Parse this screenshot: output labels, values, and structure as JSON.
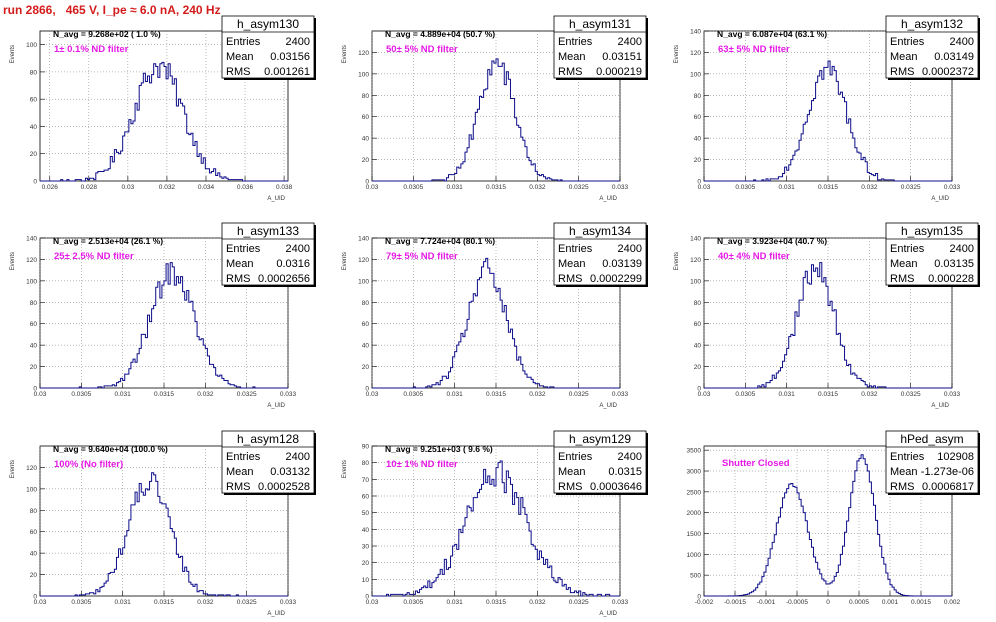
{
  "run_title": "run 2866,   465 V, I_pe ≈ 6.0 nA, 240 Hz",
  "colors": {
    "title": "#d41c1c",
    "histogram": "#0d0d8a",
    "filter_label": "#e619e6",
    "grid": "#777777"
  },
  "chart_data": [
    {
      "type": "histogram",
      "name": "h_asym130",
      "entries": "2400",
      "mean": "0.03156",
      "rms": "0.001261",
      "navg": "N_avg = 9.268e+02 ( 1.0 %)",
      "filter": "1± 0.1% ND filter",
      "ylabel": "Events",
      "xlabel": "A_UID",
      "xlim": [
        0.0255,
        0.0382
      ],
      "ylim": [
        0,
        110
      ],
      "xticks": [
        0.026,
        0.028,
        0.03,
        0.032,
        0.034,
        0.036,
        0.038
      ],
      "xtick_labels": [
        "0.026",
        "0.028",
        "0.03",
        "0.032",
        "0.034",
        "0.036",
        "0.038"
      ],
      "yticks": [
        0,
        20,
        40,
        60,
        80,
        100
      ],
      "peak": 103,
      "mean_value": 0.03156,
      "rms_value": 0.001261,
      "grid": true
    },
    {
      "type": "histogram",
      "name": "h_asym131",
      "entries": "2400",
      "mean": "0.03151",
      "rms": "0.000219",
      "navg": "N_avg = 4.889e+04 (50.7 %)",
      "filter": "50± 5% ND filter",
      "ylabel": "Events",
      "xlabel": "A_UID",
      "xlim": [
        0.03,
        0.033
      ],
      "ylim": [
        0,
        140
      ],
      "xticks": [
        0.03,
        0.0305,
        0.031,
        0.0315,
        0.032,
        0.0325,
        0.033
      ],
      "xtick_labels": [
        "0.03",
        "0.0305",
        "0.031",
        "0.0315",
        "0.032",
        "0.0325",
        "0.033"
      ],
      "yticks": [
        0,
        20,
        40,
        60,
        80,
        100,
        120
      ],
      "peak": 134,
      "mean_value": 0.03151,
      "rms_value": 0.000219,
      "grid": true
    },
    {
      "type": "histogram",
      "name": "h_asym132",
      "entries": "2400",
      "mean": "0.03149",
      "rms": "0.0002372",
      "navg": "N_avg = 6.087e+04 (63.1 %)",
      "filter": "63± 5% ND filter",
      "ylabel": "Events",
      "xlabel": "A_UID",
      "xlim": [
        0.03,
        0.033
      ],
      "ylim": [
        0,
        140
      ],
      "xticks": [
        0.03,
        0.0305,
        0.031,
        0.0315,
        0.032,
        0.0325,
        0.033
      ],
      "xtick_labels": [
        "0.03",
        "0.0305",
        "0.031",
        "0.0315",
        "0.032",
        "0.0325",
        "0.033"
      ],
      "yticks": [
        0,
        20,
        40,
        60,
        80,
        100,
        120,
        140
      ],
      "peak": 128,
      "mean_value": 0.03149,
      "rms_value": 0.0002372,
      "grid": true
    },
    {
      "type": "histogram",
      "name": "h_asym133",
      "entries": "2400",
      "mean": "0.0316",
      "rms": "0.0002656",
      "navg": "N_avg = 2.513e+04 (26.1 %)",
      "filter": "25± 2.5% ND filter",
      "ylabel": "Events",
      "xlabel": "A_UID",
      "xlim": [
        0.03,
        0.033
      ],
      "ylim": [
        0,
        140
      ],
      "xticks": [
        0.03,
        0.0305,
        0.031,
        0.0315,
        0.032,
        0.0325,
        0.033
      ],
      "xtick_labels": [
        "0.03",
        "0.0305",
        "0.031",
        "0.0315",
        "0.032",
        "0.0325",
        "0.033"
      ],
      "yticks": [
        0,
        20,
        40,
        60,
        80,
        100,
        120,
        140
      ],
      "peak": 132,
      "mean_value": 0.0316,
      "rms_value": 0.0002656,
      "grid": true
    },
    {
      "type": "histogram",
      "name": "h_asym134",
      "entries": "2400",
      "mean": "0.03139",
      "rms": "0.0002299",
      "navg": "N_avg = 7.724e+04 (80.1 %)",
      "filter": "79± 5% ND filter",
      "ylabel": "Events",
      "xlabel": "A_UID",
      "xlim": [
        0.03,
        0.033
      ],
      "ylim": [
        0,
        140
      ],
      "xticks": [
        0.03,
        0.0305,
        0.031,
        0.0315,
        0.032,
        0.0325,
        0.033
      ],
      "xtick_labels": [
        "0.03",
        "0.0305",
        "0.031",
        "0.0315",
        "0.032",
        "0.0325",
        "0.033"
      ],
      "yticks": [
        0,
        20,
        40,
        60,
        80,
        100,
        120,
        140
      ],
      "peak": 134,
      "mean_value": 0.03139,
      "rms_value": 0.0002299,
      "grid": true
    },
    {
      "type": "histogram",
      "name": "h_asym135",
      "entries": "2400",
      "mean": "0.03135",
      "rms": "0.000228",
      "navg": "N_avg = 3.923e+04 (40.7 %)",
      "filter": "40± 4% ND filter",
      "ylabel": "Events",
      "xlabel": "A_UID",
      "xlim": [
        0.03,
        0.033
      ],
      "ylim": [
        0,
        140
      ],
      "xticks": [
        0.03,
        0.0305,
        0.031,
        0.0315,
        0.032,
        0.0325,
        0.033
      ],
      "xtick_labels": [
        "0.03",
        "0.0305",
        "0.031",
        "0.0315",
        "0.032",
        "0.0325",
        "0.033"
      ],
      "yticks": [
        0,
        20,
        40,
        60,
        80,
        100,
        120,
        140
      ],
      "peak": 136,
      "mean_value": 0.03135,
      "rms_value": 0.000228,
      "grid": true
    },
    {
      "type": "histogram",
      "name": "h_asym128",
      "entries": "2400",
      "mean": "0.03132",
      "rms": "0.0002528",
      "navg": "N_avg = 9.640e+04 (100.0 %)",
      "filter": "100% (No filter)",
      "ylabel": "Events",
      "xlabel": "A_UID",
      "xlim": [
        0.03,
        0.033
      ],
      "ylim": [
        0,
        140
      ],
      "xticks": [
        0.03,
        0.0305,
        0.031,
        0.0315,
        0.032,
        0.0325,
        0.033
      ],
      "xtick_labels": [
        "0.03",
        "0.0305",
        "0.031",
        "0.0315",
        "0.032",
        "0.0325",
        "0.033"
      ],
      "yticks": [
        0,
        20,
        40,
        60,
        80,
        100,
        120
      ],
      "peak": 130,
      "mean_value": 0.03132,
      "rms_value": 0.0002528,
      "grid": true
    },
    {
      "type": "histogram",
      "name": "h_asym129",
      "entries": "2400",
      "mean": "0.0315",
      "rms": "0.0003646",
      "navg": "N_avg = 9.251e+03 ( 9.6 %)",
      "filter": "10± 1% ND filter",
      "ylabel": "Events",
      "xlabel": "A_UID",
      "xlim": [
        0.03,
        0.033
      ],
      "ylim": [
        0,
        90
      ],
      "xticks": [
        0.03,
        0.0305,
        0.031,
        0.0315,
        0.032,
        0.0325,
        0.033
      ],
      "xtick_labels": [
        "0.03",
        "0.0305",
        "0.031",
        "0.0315",
        "0.032",
        "0.0325",
        "0.033"
      ],
      "yticks": [
        0,
        10,
        20,
        30,
        40,
        50,
        60,
        70,
        80,
        90
      ],
      "peak": 90,
      "mean_value": 0.0315,
      "rms_value": 0.0003646,
      "grid": true
    },
    {
      "type": "histogram",
      "name": "hPed_asym",
      "entries": "102908",
      "mean": "-1.273e-06",
      "rms": "0.0006817",
      "navg": "",
      "filter": "Shutter Closed",
      "ylabel": "",
      "xlabel": "",
      "xlim": [
        -0.002,
        0.002
      ],
      "ylim": [
        0,
        3600
      ],
      "xticks": [
        -0.002,
        -0.0015,
        -0.001,
        -0.0005,
        0,
        0.0005,
        0.001,
        0.0015,
        0.002
      ],
      "xtick_labels": [
        "-0.002",
        "-0.0015",
        "-0.001",
        "-0.0005",
        "0",
        "0.0005",
        "0.001",
        "0.0015",
        "0.002"
      ],
      "yticks": [
        0,
        500,
        1000,
        1500,
        2000,
        2500,
        3000,
        3500
      ],
      "bimodal": {
        "left_mu": -0.00058,
        "left_sigma": 0.00025,
        "left_peak": 2850,
        "right_mu": 0.00055,
        "right_sigma": 0.00021,
        "right_peak": 3550
      },
      "grid": true
    }
  ]
}
